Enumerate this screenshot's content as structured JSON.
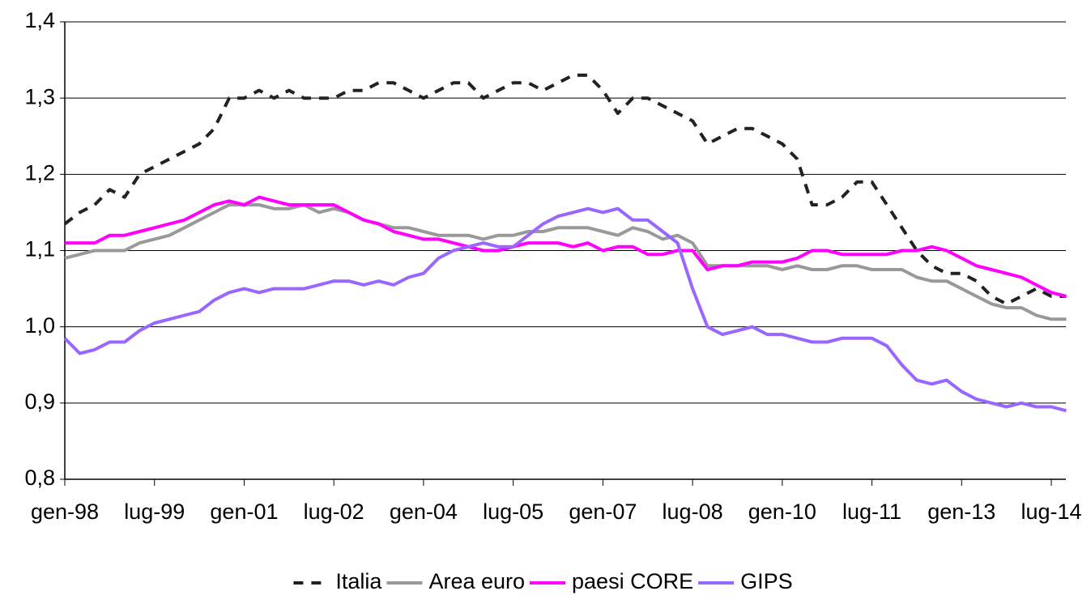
{
  "chart_data": {
    "type": "line",
    "categories": [
      "gen-98",
      null,
      null,
      null,
      null,
      null,
      "lug-99",
      null,
      null,
      null,
      null,
      null,
      "gen-01",
      null,
      null,
      null,
      null,
      null,
      "lug-02",
      null,
      null,
      null,
      null,
      null,
      "gen-04",
      null,
      null,
      null,
      null,
      null,
      "lug-05",
      null,
      null,
      null,
      null,
      null,
      "gen-07",
      null,
      null,
      null,
      null,
      null,
      "lug-08",
      null,
      null,
      null,
      null,
      null,
      "gen-10",
      null,
      null,
      null,
      null,
      null,
      "lug-11",
      null,
      null,
      null,
      null,
      null,
      "gen-13",
      null,
      null,
      null,
      null,
      null,
      "lug-14",
      null
    ],
    "series": [
      {
        "name": "Italia",
        "color": "#222222",
        "dashed": true,
        "values": [
          1.135,
          1.15,
          1.16,
          1.18,
          1.17,
          1.2,
          1.21,
          1.22,
          1.23,
          1.24,
          1.26,
          1.3,
          1.3,
          1.31,
          1.3,
          1.31,
          1.3,
          1.3,
          1.3,
          1.31,
          1.31,
          1.32,
          1.32,
          1.31,
          1.3,
          1.31,
          1.32,
          1.32,
          1.3,
          1.31,
          1.32,
          1.32,
          1.31,
          1.32,
          1.33,
          1.33,
          1.31,
          1.28,
          1.3,
          1.3,
          1.29,
          1.28,
          1.27,
          1.24,
          1.25,
          1.26,
          1.26,
          1.25,
          1.24,
          1.22,
          1.16,
          1.16,
          1.17,
          1.19,
          1.19,
          1.16,
          1.13,
          1.1,
          1.08,
          1.07,
          1.07,
          1.06,
          1.04,
          1.03,
          1.04,
          1.05,
          1.04,
          1.04
        ]
      },
      {
        "name": "Area euro",
        "color": "#999999",
        "dashed": false,
        "values": [
          1.09,
          1.095,
          1.1,
          1.1,
          1.1,
          1.11,
          1.115,
          1.12,
          1.13,
          1.14,
          1.15,
          1.16,
          1.16,
          1.16,
          1.155,
          1.155,
          1.16,
          1.15,
          1.155,
          1.15,
          1.14,
          1.135,
          1.13,
          1.13,
          1.125,
          1.12,
          1.12,
          1.12,
          1.115,
          1.12,
          1.12,
          1.125,
          1.125,
          1.13,
          1.13,
          1.13,
          1.125,
          1.12,
          1.13,
          1.125,
          1.115,
          1.12,
          1.11,
          1.08,
          1.08,
          1.08,
          1.08,
          1.08,
          1.075,
          1.08,
          1.075,
          1.075,
          1.08,
          1.08,
          1.075,
          1.075,
          1.075,
          1.065,
          1.06,
          1.06,
          1.05,
          1.04,
          1.03,
          1.025,
          1.025,
          1.015,
          1.01,
          1.01
        ]
      },
      {
        "name": "paesi CORE",
        "color": "#ff00ff",
        "dashed": false,
        "values": [
          1.11,
          1.11,
          1.11,
          1.12,
          1.12,
          1.125,
          1.13,
          1.135,
          1.14,
          1.15,
          1.16,
          1.165,
          1.16,
          1.17,
          1.165,
          1.16,
          1.16,
          1.16,
          1.16,
          1.15,
          1.14,
          1.135,
          1.125,
          1.12,
          1.115,
          1.115,
          1.11,
          1.105,
          1.1,
          1.1,
          1.105,
          1.11,
          1.11,
          1.11,
          1.105,
          1.11,
          1.1,
          1.105,
          1.105,
          1.095,
          1.095,
          1.1,
          1.1,
          1.075,
          1.08,
          1.08,
          1.085,
          1.085,
          1.085,
          1.09,
          1.1,
          1.1,
          1.095,
          1.095,
          1.095,
          1.095,
          1.1,
          1.1,
          1.105,
          1.1,
          1.09,
          1.08,
          1.075,
          1.07,
          1.065,
          1.055,
          1.045,
          1.04
        ]
      },
      {
        "name": "GIPS",
        "color": "#9966ff",
        "dashed": false,
        "values": [
          0.985,
          0.965,
          0.97,
          0.98,
          0.98,
          0.995,
          1.005,
          1.01,
          1.015,
          1.02,
          1.035,
          1.045,
          1.05,
          1.045,
          1.05,
          1.05,
          1.05,
          1.055,
          1.06,
          1.06,
          1.055,
          1.06,
          1.055,
          1.065,
          1.07,
          1.09,
          1.1,
          1.105,
          1.11,
          1.105,
          1.105,
          1.12,
          1.135,
          1.145,
          1.15,
          1.155,
          1.15,
          1.155,
          1.14,
          1.14,
          1.125,
          1.11,
          1.05,
          1.0,
          0.99,
          0.995,
          1.0,
          0.99,
          0.99,
          0.985,
          0.98,
          0.98,
          0.985,
          0.985,
          0.985,
          0.975,
          0.95,
          0.93,
          0.925,
          0.93,
          0.915,
          0.905,
          0.9,
          0.895,
          0.9,
          0.895,
          0.895,
          0.89
        ]
      }
    ],
    "ylim": [
      0.8,
      1.4
    ],
    "yticks": [
      {
        "value": 0.8,
        "label": "0,8"
      },
      {
        "value": 0.9,
        "label": "0,9"
      },
      {
        "value": 1.0,
        "label": "1,0"
      },
      {
        "value": 1.1,
        "label": "1,1"
      },
      {
        "value": 1.2,
        "label": "1,2"
      },
      {
        "value": 1.3,
        "label": "1,3"
      },
      {
        "value": 1.4,
        "label": "1,4"
      }
    ],
    "grid": true
  }
}
